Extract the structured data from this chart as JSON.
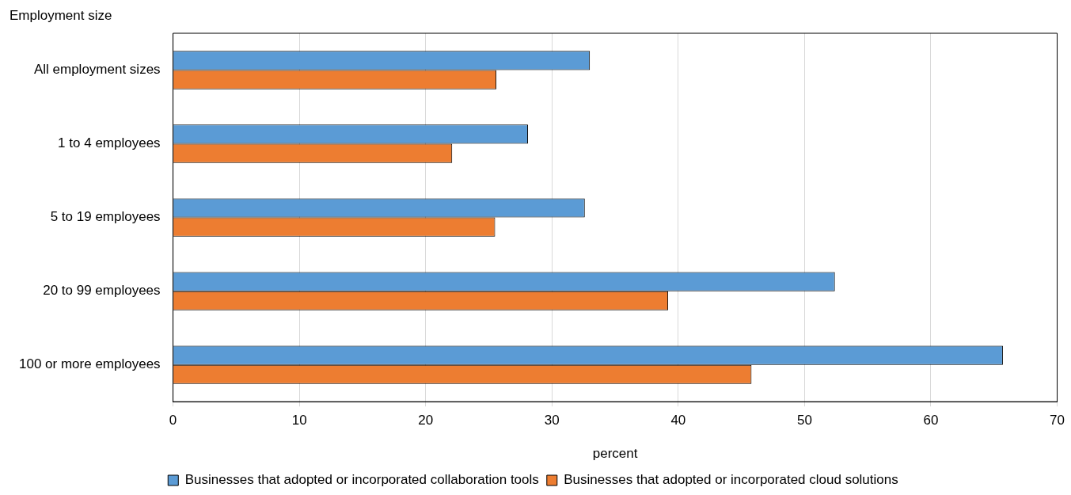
{
  "chart_data": {
    "type": "bar",
    "orientation": "horizontal",
    "ylabel": "Employment size",
    "xlabel": "percent",
    "categories": [
      "All employment sizes",
      "1 to 4 employees",
      "5 to 19 employees",
      "20 to 99 employees",
      "100 or more employees"
    ],
    "series": [
      {
        "name": "Businesses that adopted or incorporated collaboration tools",
        "color": "#5b9bd5",
        "values": [
          33.0,
          28.1,
          32.6,
          52.4,
          65.7
        ]
      },
      {
        "name": "Businesses that adopted or incorporated cloud solutions",
        "color": "#ed7d31",
        "values": [
          25.6,
          22.1,
          25.5,
          39.2,
          45.8
        ]
      }
    ],
    "xlim": [
      0,
      70
    ],
    "xticks": [
      0,
      10,
      20,
      30,
      40,
      50,
      60,
      70
    ],
    "grid": "x",
    "legend": "bottom"
  }
}
